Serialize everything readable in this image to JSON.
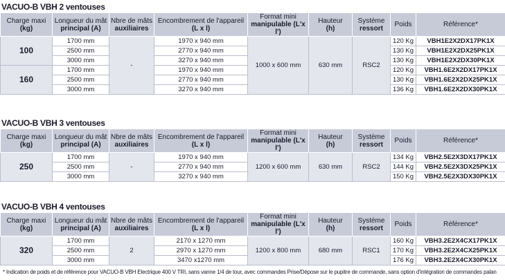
{
  "header": [
    [
      "Charge maxi",
      "(kg)"
    ],
    [
      "Longueur du mât",
      "principal (A)"
    ],
    [
      "Nbre de mâts",
      "auxiliaires"
    ],
    [
      "Encombrement de l'appareil",
      "(L x l)"
    ],
    [
      "Format mini",
      "manipulable (L'x l')"
    ],
    [
      "Hauteur",
      "(h)"
    ],
    [
      "Système",
      "ressort"
    ],
    [
      "Poids"
    ],
    [
      "Référence*"
    ]
  ],
  "sections": [
    {
      "title": "VACUO-B VBH 2 ventouses",
      "nbre": "-",
      "format": "1000 x 600 mm",
      "hauteur": "630 mm",
      "systeme": "RSC2",
      "groups": [
        {
          "charge": "100",
          "rows": [
            {
              "longueur": "1700 mm",
              "encombrement": "1970 x 940 mm",
              "poids": "120 Kg",
              "reference": "VBH1E2X2DX17PK1X"
            },
            {
              "longueur": "2500 mm",
              "encombrement": "2770 x 940 mm",
              "poids": "130 Kg",
              "reference": "VBH1E2X2DX25PK1X"
            },
            {
              "longueur": "3000 mm",
              "encombrement": "3270 x 940 mm",
              "poids": "130 Kg",
              "reference": "VBH1E2X2DX30PK1X"
            }
          ]
        },
        {
          "charge": "160",
          "rows": [
            {
              "longueur": "1700 mm",
              "encombrement": "1970 x 940 mm",
              "poids": "120 Kg",
              "reference": "VBH1.6E2X2DX17PK1X"
            },
            {
              "longueur": "2500 mm",
              "encombrement": "2770 x 940 mm",
              "poids": "130 Kg",
              "reference": "VBH1.6E2X2DX25PK1X"
            },
            {
              "longueur": "3000 mm",
              "encombrement": "3270 x 940 mm",
              "poids": "136 Kg",
              "reference": "VBH1.6E2X2DX30PK1X"
            }
          ]
        }
      ]
    },
    {
      "title": "VACUO-B VBH 3 ventouses",
      "nbre": "-",
      "format": "1200 x 600 mm",
      "hauteur": "630 mm",
      "systeme": "RSC2",
      "groups": [
        {
          "charge": "250",
          "rows": [
            {
              "longueur": "1700 mm",
              "encombrement": "1970 x 940 mm",
              "poids": "134 Kg",
              "reference": "VBH2.5E2X3DX17PK1X"
            },
            {
              "longueur": "2500 mm",
              "encombrement": "2770 x 940 mm",
              "poids": "144 Kg",
              "reference": "VBH2.5E2X3DX25PK1X"
            },
            {
              "longueur": "3000 mm",
              "encombrement": "3270 x 940 mm",
              "poids": "150 Kg",
              "reference": "VBH2.5E2X3DX30PK1X"
            }
          ]
        }
      ]
    },
    {
      "title": "VACUO-B VBH 4 ventouses",
      "nbre": "2",
      "format": "1200 x 800 mm",
      "hauteur": "680 mm",
      "systeme": "RSC1",
      "groups": [
        {
          "charge": "320",
          "rows": [
            {
              "longueur": "1700 mm",
              "encombrement": "2170 x 1270 mm",
              "poids": "160 Kg",
              "reference": "VBH3.2E2X4CX17PK1X"
            },
            {
              "longueur": "2500 mm",
              "encombrement": "2970 x 1270 mm",
              "poids": "170 Kg",
              "reference": "VBH3.2E2X4CX25PK1X"
            },
            {
              "longueur": "3000 mm",
              "encombrement": "3470 x1270 mm",
              "poids": "176 Kg",
              "reference": "VBH3.2E2X4CX30PK1X"
            }
          ]
        }
      ]
    }
  ],
  "footnote": "* Indication de poids et de référence pour VACUO-B VBH Electrique 400 V TRI, sans vanne 1/4 de tour, avec commandes Prise/Dépose sur le pupitre de commande, sans option d'intégration de commandes palan"
}
